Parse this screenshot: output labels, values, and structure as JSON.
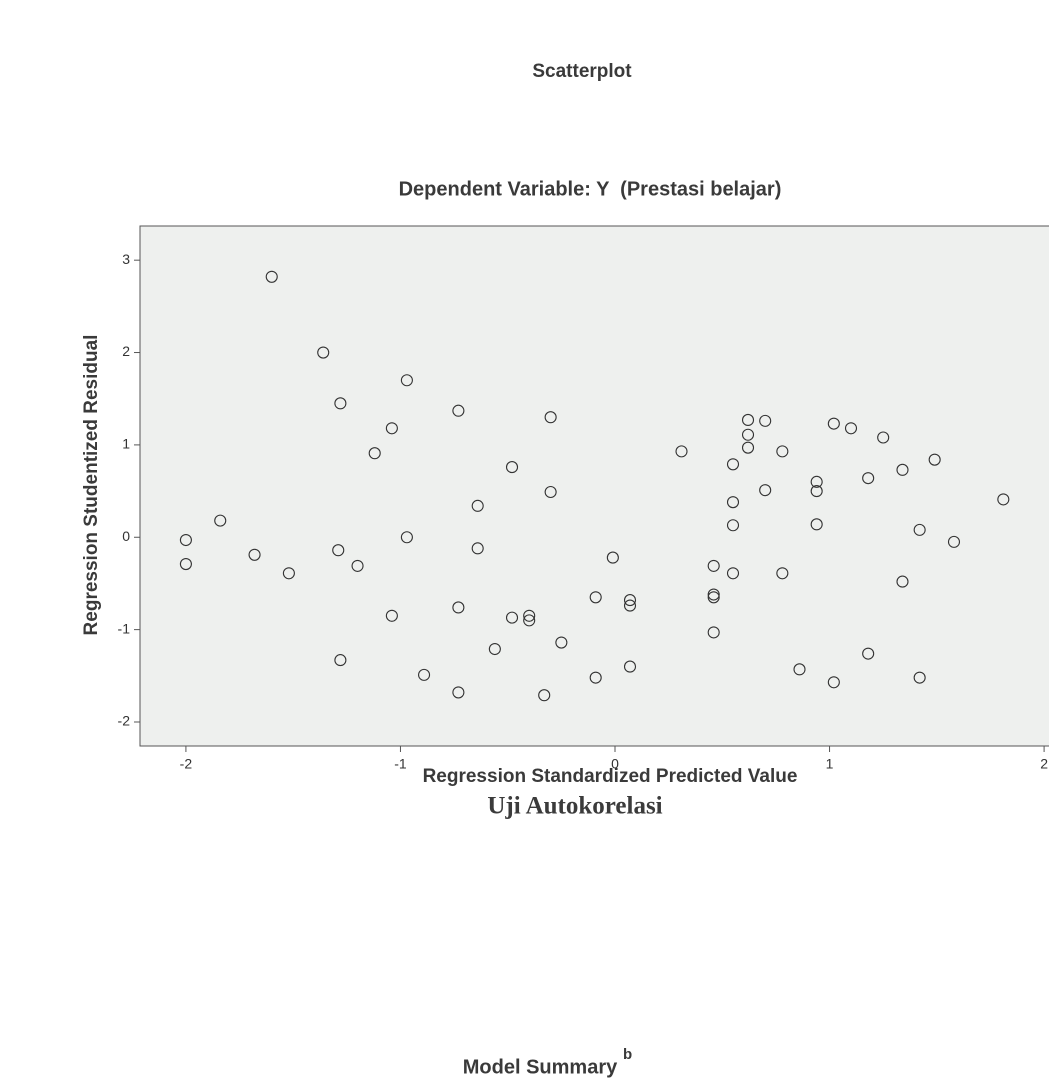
{
  "chart_data": {
    "type": "scatter",
    "title": "Scatterplot",
    "subtitle": "Dependent Variable: Y  (Prestasi belajar)",
    "xlabel": "Regression Standardized Predicted Value",
    "ylabel": "Regression Studentized Residual",
    "xlim": [
      -2.214,
      2.2
    ],
    "ylim": [
      -2.26,
      3.37
    ],
    "xticks": [
      -2,
      -1,
      0,
      1,
      2
    ],
    "yticks": [
      -2,
      -1,
      0,
      1,
      2,
      3
    ],
    "marker_color": "#333333",
    "background": "#eef0ee",
    "x": [
      -1.6,
      -1.36,
      -0.97,
      -1.28,
      -0.73,
      -0.3,
      -1.04,
      -1.12,
      -0.48,
      -0.3,
      -0.64,
      0.31,
      0.62,
      0.7,
      0.62,
      0.62,
      0.55,
      0.78,
      1.02,
      1.1,
      1.25,
      1.49,
      1.34,
      1.18,
      0.94,
      0.94,
      0.7,
      0.55,
      0.55,
      0.94,
      1.81,
      1.42,
      1.58,
      -2.0,
      -2.0,
      -1.84,
      -1.68,
      -1.52,
      -1.29,
      -1.2,
      -0.97,
      -0.64,
      -0.01,
      0.46,
      0.55,
      0.78,
      1.34,
      0.46,
      0.46,
      -0.09,
      0.07,
      0.07,
      -0.73,
      -0.48,
      -0.4,
      -0.4,
      -1.04,
      0.46,
      -0.25,
      -0.56,
      -1.28,
      0.07,
      0.86,
      1.18,
      -0.89,
      -0.09,
      1.42,
      1.02,
      -0.73,
      -0.33
    ],
    "values": [
      2.82,
      2.0,
      1.7,
      1.45,
      1.37,
      1.3,
      1.18,
      0.91,
      0.76,
      0.49,
      0.34,
      0.93,
      1.27,
      1.26,
      1.11,
      0.97,
      0.79,
      0.93,
      1.23,
      1.18,
      1.08,
      0.84,
      0.73,
      0.64,
      0.6,
      0.5,
      0.51,
      0.38,
      0.13,
      0.14,
      0.41,
      0.08,
      -0.05,
      -0.03,
      -0.29,
      0.18,
      -0.19,
      -0.39,
      -0.14,
      -0.31,
      0.0,
      -0.12,
      -0.22,
      -0.31,
      -0.39,
      -0.39,
      -0.48,
      -0.62,
      -0.65,
      -0.65,
      -0.68,
      -0.74,
      -0.76,
      -0.87,
      -0.85,
      -0.9,
      -0.85,
      -1.03,
      -1.14,
      -1.21,
      -1.33,
      -1.4,
      -1.43,
      -1.26,
      -1.49,
      -1.52,
      -1.52,
      -1.57,
      -1.68,
      -1.71
    ]
  },
  "heading": "Uji Autokorelasi",
  "next_table_title": "Model Summary",
  "next_table_title_note": "b"
}
